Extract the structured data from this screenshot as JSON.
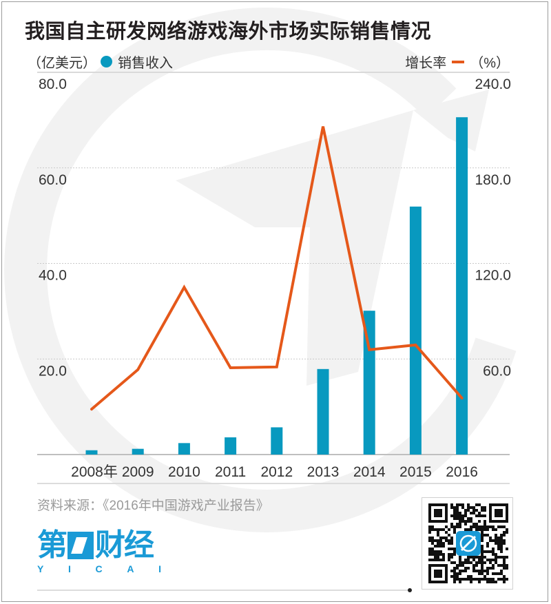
{
  "title": "我国自主研发网络游戏海外市场实际销售情况",
  "legend": {
    "left_unit": "（亿美元）",
    "bar_label": "销售收入",
    "line_label": "增长率",
    "right_unit": "（%）"
  },
  "colors": {
    "bar": "#0899bf",
    "line": "#e5581a",
    "brand": "#1a9ad6",
    "watermark": "#f1f1f1"
  },
  "axes": {
    "left_ticks": [
      "80.0",
      "60.0",
      "40.0",
      "20.0"
    ],
    "right_ticks": [
      "240.0",
      "180.0",
      "120.0",
      "60.0"
    ]
  },
  "source": "资料来源：《2016年中国游戏产业报告》",
  "logo": {
    "cn_1": "第",
    "cn_2": "财经",
    "en_letters": [
      "Y",
      "I",
      "C",
      "A",
      "I"
    ]
  },
  "chart_data": {
    "type": "bar+line",
    "title": "我国自主研发网络游戏海外市场实际销售情况",
    "categories": [
      "2008年",
      "2009",
      "2010",
      "2011",
      "2012",
      "2013",
      "2014",
      "2015",
      "2016"
    ],
    "series": [
      {
        "name": "销售收入",
        "type": "bar",
        "axis": "left",
        "unit": "亿美元",
        "values": [
          0.9,
          1.2,
          2.4,
          3.6,
          5.7,
          17.9,
          30.1,
          51.9,
          70.6
        ]
      },
      {
        "name": "增长率",
        "type": "line",
        "axis": "right",
        "unit": "%",
        "values": [
          28.5,
          53.3,
          105.0,
          54.5,
          55.0,
          206.0,
          65.8,
          68.8,
          35.5
        ]
      }
    ],
    "ylabel_left": "亿美元",
    "ylabel_right": "%",
    "ylim_left": [
      0,
      80
    ],
    "ylim_right": [
      0,
      240
    ],
    "yticks_left": [
      20,
      40,
      60,
      80
    ],
    "yticks_right": [
      60,
      120,
      180,
      240
    ],
    "grid": "dashed horizontal",
    "legend_position": "top"
  }
}
